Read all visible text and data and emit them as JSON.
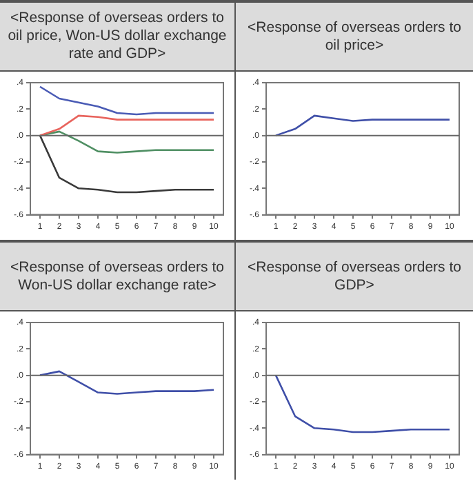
{
  "chart_data": [
    {
      "type": "line",
      "title": "<Response of overseas orders to oil price, Won-US dollar exchange rate and GDP>",
      "categories": [
        "1",
        "2",
        "3",
        "4",
        "5",
        "6",
        "7",
        "8",
        "9",
        "10"
      ],
      "series": [
        {
          "color": "#4a5bb5",
          "values": [
            0.37,
            0.28,
            0.25,
            0.22,
            0.17,
            0.16,
            0.17,
            0.17,
            0.17,
            0.17
          ]
        },
        {
          "color": "#e8635c",
          "values": [
            0,
            0.05,
            0.15,
            0.14,
            0.12,
            0.12,
            0.12,
            0.12,
            0.12,
            0.12
          ]
        },
        {
          "color": "#4f8f63",
          "values": [
            0,
            0.03,
            -0.04,
            -0.12,
            -0.13,
            -0.12,
            -0.11,
            -0.11,
            -0.11,
            -0.11
          ]
        },
        {
          "color": "#3a3a3a",
          "values": [
            0,
            -0.32,
            -0.4,
            -0.41,
            -0.43,
            -0.43,
            -0.42,
            -0.41,
            -0.41,
            -0.41
          ]
        }
      ],
      "ylim": [
        -0.6,
        0.4
      ],
      "yticks": [
        {
          "value": 0.4,
          "label": ".4"
        },
        {
          "value": 0.2,
          "label": ".2"
        },
        {
          "value": 0,
          "label": ".0"
        },
        {
          "value": -0.2,
          "label": "-.2"
        },
        {
          "value": -0.4,
          "label": "-.4"
        },
        {
          "value": -0.6,
          "label": "-.6"
        }
      ],
      "ref_lines": [
        {
          "axis": "y",
          "value": 0,
          "color": "#666666"
        }
      ],
      "grid": false,
      "legend": false,
      "marker": "none"
    },
    {
      "type": "line",
      "title": "<Response of overseas orders to oil price>",
      "categories": [
        "1",
        "2",
        "3",
        "4",
        "5",
        "6",
        "7",
        "8",
        "9",
        "10"
      ],
      "series": [
        {
          "color": "#3f4fa8",
          "values": [
            0,
            0.05,
            0.15,
            0.13,
            0.11,
            0.12,
            0.12,
            0.12,
            0.12,
            0.12
          ]
        }
      ],
      "ylim": [
        -0.6,
        0.4
      ],
      "yticks": [
        {
          "value": 0.4,
          "label": ".4"
        },
        {
          "value": 0.2,
          "label": ".2"
        },
        {
          "value": 0,
          "label": ".0"
        },
        {
          "value": -0.2,
          "label": "-.2"
        },
        {
          "value": -0.4,
          "label": "-.4"
        },
        {
          "value": -0.6,
          "label": "-.6"
        }
      ],
      "ref_lines": [
        {
          "axis": "y",
          "value": 0,
          "color": "#666666"
        }
      ],
      "grid": false,
      "legend": false,
      "marker": "none"
    },
    {
      "type": "line",
      "title": "<Response of overseas orders to Won-US dollar exchange rate>",
      "categories": [
        "1",
        "2",
        "3",
        "4",
        "5",
        "6",
        "7",
        "8",
        "9",
        "10"
      ],
      "series": [
        {
          "color": "#3f4fa8",
          "values": [
            0,
            0.03,
            -0.05,
            -0.13,
            -0.14,
            -0.13,
            -0.12,
            -0.12,
            -0.12,
            -0.11
          ]
        }
      ],
      "ylim": [
        -0.6,
        0.4
      ],
      "yticks": [
        {
          "value": 0.4,
          "label": ".4"
        },
        {
          "value": 0.2,
          "label": ".2"
        },
        {
          "value": 0,
          "label": ".0"
        },
        {
          "value": -0.2,
          "label": "-.2"
        },
        {
          "value": -0.4,
          "label": "-.4"
        },
        {
          "value": -0.6,
          "label": "-.6"
        }
      ],
      "ref_lines": [
        {
          "axis": "y",
          "value": 0,
          "color": "#666666"
        }
      ],
      "grid": false,
      "legend": false,
      "marker": "none"
    },
    {
      "type": "line",
      "title": "<Response of overseas orders to GDP>",
      "categories": [
        "1",
        "2",
        "3",
        "4",
        "5",
        "6",
        "7",
        "8",
        "9",
        "10"
      ],
      "series": [
        {
          "color": "#3f4fa8",
          "values": [
            0,
            -0.31,
            -0.4,
            -0.41,
            -0.43,
            -0.43,
            -0.42,
            -0.41,
            -0.41,
            -0.41
          ]
        }
      ],
      "ylim": [
        -0.6,
        0.4
      ],
      "yticks": [
        {
          "value": 0.4,
          "label": ".4"
        },
        {
          "value": 0.2,
          "label": ".2"
        },
        {
          "value": 0,
          "label": ".0"
        },
        {
          "value": -0.2,
          "label": "-.2"
        },
        {
          "value": -0.4,
          "label": "-.4"
        },
        {
          "value": -0.6,
          "label": "-.6"
        }
      ],
      "ref_lines": [
        {
          "axis": "y",
          "value": 0,
          "color": "#666666"
        }
      ],
      "grid": false,
      "legend": false,
      "marker": "none"
    }
  ]
}
